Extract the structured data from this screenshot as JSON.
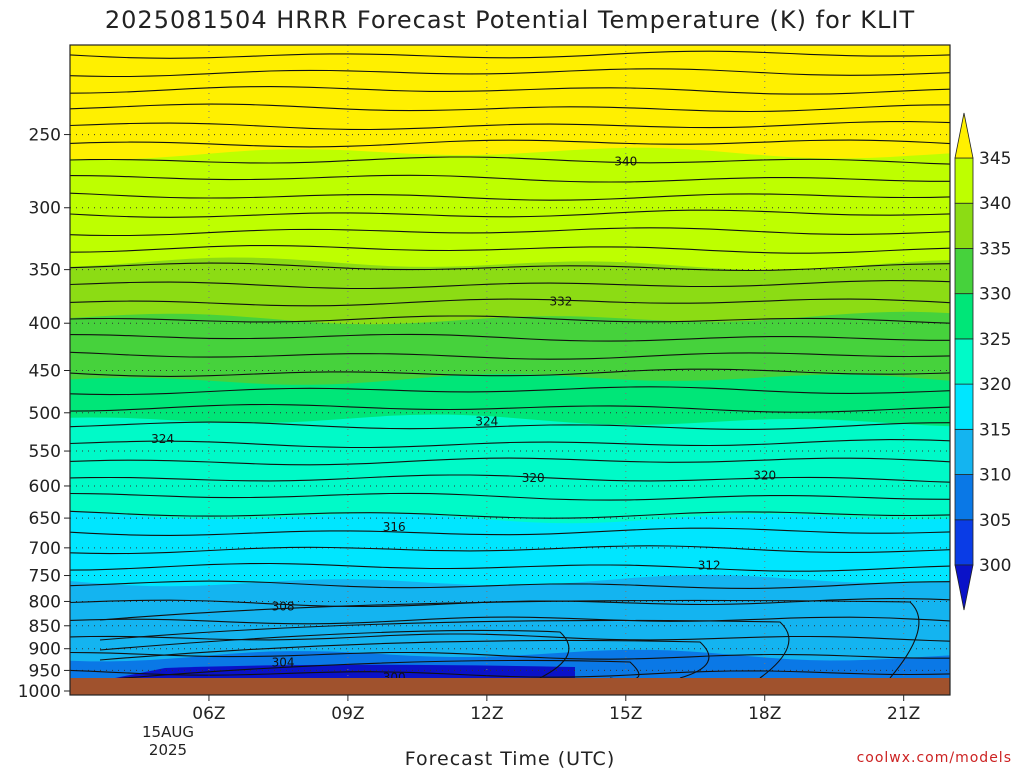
{
  "chart_data": {
    "type": "contour",
    "title": "2025081504 HRRR Forecast Potential Temperature (K) for KLIT",
    "xlabel": "Forecast Time (UTC)",
    "ylabel": "",
    "x_ticks": [
      "06Z",
      "09Z",
      "12Z",
      "15Z",
      "18Z",
      "21Z"
    ],
    "x_date_sub": [
      "15AUG",
      "2025"
    ],
    "x_range_hours_utc": [
      3.0,
      22.0
    ],
    "y_ticks": [
      250,
      300,
      350,
      400,
      450,
      500,
      550,
      600,
      650,
      700,
      750,
      800,
      850,
      900,
      950,
      1000
    ],
    "y_range_hpa": [
      200,
      1010
    ],
    "y_scale": "log-pressure (inverted)",
    "grid": "dotted",
    "colorbar": {
      "levels": [
        300,
        305,
        310,
        315,
        320,
        325,
        330,
        335,
        340,
        345
      ],
      "colors": [
        "#0a12c8",
        "#0a3ce6",
        "#0a78e6",
        "#14b4f0",
        "#00e6ff",
        "#00fac8",
        "#00e678",
        "#46d23c",
        "#8cdc14",
        "#beff00",
        "#fff000"
      ],
      "extend": "both",
      "placement": "right"
    },
    "contour_interval_k": 2,
    "contour_labels": [
      {
        "value": "340",
        "time": 15.0,
        "p": 268
      },
      {
        "value": "332",
        "time": 13.6,
        "p": 380
      },
      {
        "value": "324",
        "time": 5.0,
        "p": 535
      },
      {
        "value": "324",
        "time": 12.0,
        "p": 512
      },
      {
        "value": "320",
        "time": 13.0,
        "p": 590
      },
      {
        "value": "320",
        "time": 18.0,
        "p": 586
      },
      {
        "value": "316",
        "time": 10.0,
        "p": 666
      },
      {
        "value": "312",
        "time": 16.8,
        "p": 733
      },
      {
        "value": "308",
        "time": 7.6,
        "p": 812
      },
      {
        "value": "304",
        "time": 7.6,
        "p": 934
      },
      {
        "value": "300",
        "time": 10.0,
        "p": 969
      }
    ],
    "fill_boundaries_hpa": [
      {
        "from": 300,
        "to": 305,
        "p_top": 980
      },
      {
        "from": 305,
        "to": 310,
        "p_top": 915
      },
      {
        "from": 310,
        "to": 315,
        "p_top": 760
      },
      {
        "from": 315,
        "to": 320,
        "p_top": 648
      },
      {
        "from": 320,
        "to": 325,
        "p_top": 510
      },
      {
        "from": 325,
        "to": 330,
        "p_top": 460
      },
      {
        "from": 330,
        "to": 335,
        "p_top": 395
      },
      {
        "from": 335,
        "to": 340,
        "p_top": 345
      },
      {
        "from": 340,
        "to": 345,
        "p_top": 262
      },
      {
        "from": 345,
        "to": 350,
        "p_top": 210
      }
    ]
  },
  "credit": "coolwx.com/models"
}
